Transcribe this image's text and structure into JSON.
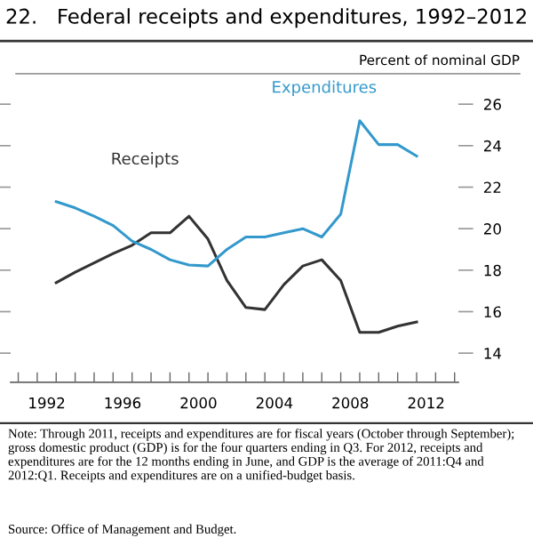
{
  "chart_data": {
    "type": "line",
    "title": "22.   Federal receipts and expenditures, 1992–2012",
    "ylabel": "Percent of nominal GDP",
    "x": [
      1993,
      1994,
      1995,
      1996,
      1997,
      1998,
      1999,
      2000,
      2001,
      2002,
      2003,
      2004,
      2005,
      2006,
      2007,
      2008,
      2009,
      2010,
      2011,
      2012
    ],
    "series": [
      {
        "name": "Receipts",
        "color": "#333333",
        "values": [
          17.4,
          17.9,
          18.35,
          18.8,
          19.2,
          19.8,
          19.8,
          20.6,
          19.5,
          17.5,
          16.2,
          16.1,
          17.3,
          18.2,
          18.5,
          17.5,
          15.0,
          15.0,
          15.3,
          15.5
        ]
      },
      {
        "name": "Expenditures",
        "color": "#3399cc",
        "values": [
          21.3,
          21.0,
          20.6,
          20.15,
          19.4,
          19.0,
          18.5,
          18.25,
          18.2,
          19.0,
          19.6,
          19.6,
          19.8,
          20.0,
          19.6,
          20.7,
          25.2,
          24.05,
          24.05,
          23.5
        ]
      }
    ],
    "xlim": [
      1990.6,
      2014.2
    ],
    "xticks": [
      {
        "value": 1991,
        "label": null
      },
      {
        "value": 1992,
        "label": null
      },
      {
        "value": 1993,
        "label": null
      },
      {
        "value": 1994,
        "label": null
      },
      {
        "value": 1995,
        "label": null
      },
      {
        "value": 1996,
        "label": null
      },
      {
        "value": 1997,
        "label": null
      },
      {
        "value": 1998,
        "label": null
      },
      {
        "value": 1999,
        "label": null
      },
      {
        "value": 2000,
        "label": null
      },
      {
        "value": 2001,
        "label": null
      },
      {
        "value": 2002,
        "label": null
      },
      {
        "value": 2003,
        "label": null
      },
      {
        "value": 2004,
        "label": null
      },
      {
        "value": 2005,
        "label": null
      },
      {
        "value": 2006,
        "label": null
      },
      {
        "value": 2007,
        "label": null
      },
      {
        "value": 2008,
        "label": null
      },
      {
        "value": 2009,
        "label": null
      },
      {
        "value": 2010,
        "label": null
      },
      {
        "value": 2011,
        "label": null
      },
      {
        "value": 2012,
        "label": null
      },
      {
        "value": 2013,
        "label": null
      },
      {
        "value": 2014,
        "label": null
      },
      {
        "value": 1992.5,
        "label": "1992"
      },
      {
        "value": 1996.5,
        "label": "1996"
      },
      {
        "value": 2000.5,
        "label": "2000"
      },
      {
        "value": 2004.5,
        "label": "2004"
      },
      {
        "value": 2008.5,
        "label": "2008"
      },
      {
        "value": 2012.5,
        "label": "2012"
      }
    ],
    "ylim": [
      12.6,
      27.6
    ],
    "yticks": [
      14,
      16,
      18,
      20,
      22,
      24,
      26
    ],
    "grid": false,
    "legend": false,
    "marker": "none",
    "line_style": "solid",
    "annotations": [
      "Note: Through 2011, receipts and expenditures are for fiscal years (October through September); gross domestic product (GDP) is for the four quarters ending in Q3. For 2012, receipts and expenditures are for the 12 months ending in June, and GDP is the average of 2011:Q4 and 2012:Q1. Receipts and expenditures are on a unified-budget basis.",
      "Source: Office of Management and Budget."
    ]
  }
}
